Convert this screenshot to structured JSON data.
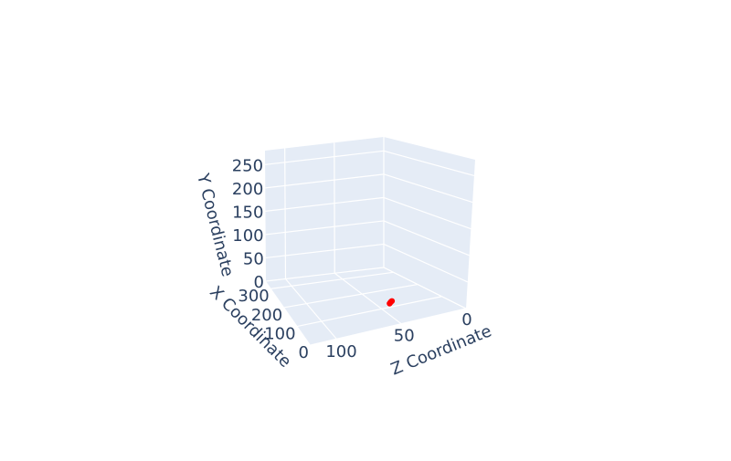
{
  "chart_data": {
    "type": "scatter3d",
    "title": "",
    "x_axis": {
      "label": "X Coordinate",
      "ticks": [
        0,
        100,
        200,
        300
      ]
    },
    "y_axis": {
      "label": "Y Coordinate",
      "ticks": [
        0,
        50,
        100,
        150,
        200,
        250
      ]
    },
    "z_axis": {
      "label": "Z Coordinate",
      "ticks": [
        0,
        50,
        100
      ]
    },
    "series": [
      {
        "marker_color": "#ff0000",
        "points": [
          {
            "x": 120,
            "y": 0,
            "z": 80
          },
          {
            "x": 122,
            "y": 1,
            "z": 81
          },
          {
            "x": 124,
            "y": 2,
            "z": 82
          },
          {
            "x": 126,
            "y": 2,
            "z": 83
          }
        ]
      }
    ],
    "grid": true,
    "scene_background": "#e5ecf6",
    "grid_color": "#ffffff"
  }
}
